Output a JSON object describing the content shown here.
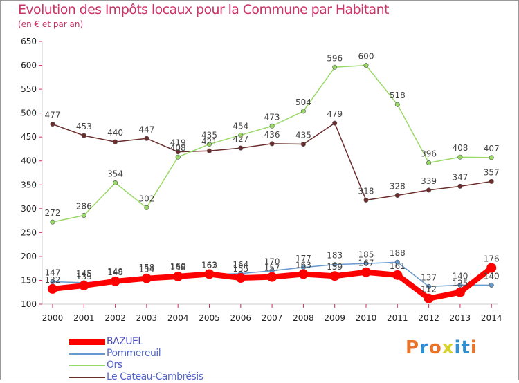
{
  "title": "Evolution des Impôts locaux pour la Commune par Habitant",
  "subtitle": "(en € et par an)",
  "logo": {
    "text": "Proxiti",
    "colors": [
      "#e8742a",
      "#2f8fd1",
      "#e8742a",
      "#d7d22b",
      "#2f8fd1",
      "#2f8fd1",
      "#e8742a"
    ]
  },
  "chart_data": {
    "type": "line",
    "title": "Evolution des Impôts locaux pour la Commune par Habitant",
    "subtitle": "(en € et par an)",
    "x": [
      "2000",
      "2001",
      "2002",
      "2003",
      "2004",
      "2005",
      "2006",
      "2007",
      "2008",
      "2009",
      "2010",
      "2011",
      "2012",
      "2013",
      "2014"
    ],
    "ylim": [
      100,
      650
    ],
    "yticks": [
      100,
      150,
      200,
      250,
      300,
      350,
      400,
      450,
      500,
      550,
      600,
      650
    ],
    "grid": false,
    "legend_position": "bottom-left",
    "series": [
      {
        "name": "Le Cateau-Cambrésis",
        "color": "#6b2c2c",
        "values": [
          477,
          453,
          440,
          447,
          419,
          421,
          427,
          436,
          435,
          479,
          318,
          328,
          339,
          347,
          357
        ]
      },
      {
        "name": "Ors",
        "color": "#99d966",
        "values": [
          272,
          286,
          354,
          302,
          408,
          435,
          454,
          473,
          504,
          596,
          600,
          518,
          396,
          408,
          407
        ]
      },
      {
        "name": "Pommereuil",
        "color": "#6699cc",
        "values": [
          147,
          145,
          149,
          158,
          160,
          162,
          164,
          170,
          177,
          183,
          185,
          188,
          137,
          140,
          140
        ]
      },
      {
        "name": "BAZUEL",
        "color": "#ff0000",
        "values": [
          132,
          139,
          148,
          154,
          158,
          163,
          155,
          157,
          163,
          159,
          167,
          161,
          112,
          125,
          176
        ]
      }
    ],
    "legend_order": [
      "BAZUEL",
      "Pommereuil",
      "Ors",
      "Le Cateau-Cambrésis"
    ]
  }
}
